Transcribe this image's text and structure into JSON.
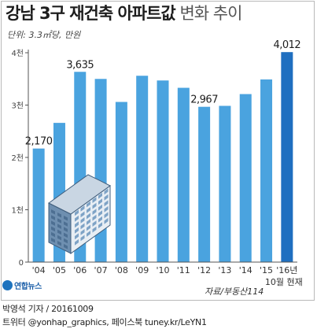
{
  "title_bold": "강남 3구 재건축 아파트값",
  "title_light": "변화 추이",
  "unit": "단위: 3.3㎡당, 만원",
  "chart_data": {
    "type": "bar",
    "title": "강남 3구 재건축 아파트값 변화 추이",
    "ylabel": "",
    "xlabel": "",
    "ylim": [
      0,
      4000
    ],
    "y_ticks": [
      0,
      1000,
      2000,
      3000,
      4000
    ],
    "y_tick_labels": [
      "0",
      "1천",
      "2천",
      "3천",
      "4천"
    ],
    "categories": [
      "'04",
      "'05",
      "'06",
      "'07",
      "'08",
      "'09",
      "'10",
      "'11",
      "'12",
      "'13",
      "'14",
      "'15",
      "'16년"
    ],
    "category_note": "10월 현재",
    "values": [
      2170,
      2660,
      3635,
      3500,
      3060,
      3560,
      3470,
      3330,
      2967,
      2985,
      3210,
      3490,
      4012
    ],
    "labels": [
      "2,170",
      null,
      "3,635",
      null,
      null,
      null,
      null,
      null,
      "2,967",
      null,
      null,
      null,
      "4,012"
    ],
    "colors": {
      "bar": "#4aa3df",
      "highlight": "#1f6fc0",
      "axis": "#555555"
    }
  },
  "source": "자료/부동산114",
  "logo": "연합뉴스",
  "footer_line1": "박영석 기자 / 20161009",
  "footer_line2": "트위터 @yonhap_graphics, 페이스북 tuney.kr/LeYN1"
}
